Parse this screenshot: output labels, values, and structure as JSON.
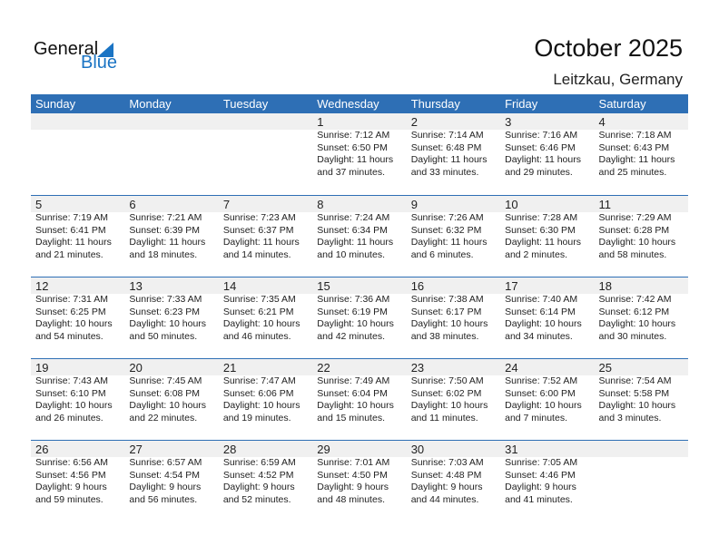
{
  "logo": {
    "general": "General",
    "blue": "Blue"
  },
  "title": "October 2025",
  "location": "Leitzkau, Germany",
  "weekdays": [
    "Sunday",
    "Monday",
    "Tuesday",
    "Wednesday",
    "Thursday",
    "Friday",
    "Saturday"
  ],
  "weeks": [
    [
      null,
      null,
      null,
      {
        "day": "1",
        "sunrise": "Sunrise: 7:12 AM",
        "sunset": "Sunset: 6:50 PM",
        "daylight": "Daylight: 11 hours",
        "minutes": "and 37 minutes."
      },
      {
        "day": "2",
        "sunrise": "Sunrise: 7:14 AM",
        "sunset": "Sunset: 6:48 PM",
        "daylight": "Daylight: 11 hours",
        "minutes": "and 33 minutes."
      },
      {
        "day": "3",
        "sunrise": "Sunrise: 7:16 AM",
        "sunset": "Sunset: 6:46 PM",
        "daylight": "Daylight: 11 hours",
        "minutes": "and 29 minutes."
      },
      {
        "day": "4",
        "sunrise": "Sunrise: 7:18 AM",
        "sunset": "Sunset: 6:43 PM",
        "daylight": "Daylight: 11 hours",
        "minutes": "and 25 minutes."
      }
    ],
    [
      {
        "day": "5",
        "sunrise": "Sunrise: 7:19 AM",
        "sunset": "Sunset: 6:41 PM",
        "daylight": "Daylight: 11 hours",
        "minutes": "and 21 minutes."
      },
      {
        "day": "6",
        "sunrise": "Sunrise: 7:21 AM",
        "sunset": "Sunset: 6:39 PM",
        "daylight": "Daylight: 11 hours",
        "minutes": "and 18 minutes."
      },
      {
        "day": "7",
        "sunrise": "Sunrise: 7:23 AM",
        "sunset": "Sunset: 6:37 PM",
        "daylight": "Daylight: 11 hours",
        "minutes": "and 14 minutes."
      },
      {
        "day": "8",
        "sunrise": "Sunrise: 7:24 AM",
        "sunset": "Sunset: 6:34 PM",
        "daylight": "Daylight: 11 hours",
        "minutes": "and 10 minutes."
      },
      {
        "day": "9",
        "sunrise": "Sunrise: 7:26 AM",
        "sunset": "Sunset: 6:32 PM",
        "daylight": "Daylight: 11 hours",
        "minutes": "and 6 minutes."
      },
      {
        "day": "10",
        "sunrise": "Sunrise: 7:28 AM",
        "sunset": "Sunset: 6:30 PM",
        "daylight": "Daylight: 11 hours",
        "minutes": "and 2 minutes."
      },
      {
        "day": "11",
        "sunrise": "Sunrise: 7:29 AM",
        "sunset": "Sunset: 6:28 PM",
        "daylight": "Daylight: 10 hours",
        "minutes": "and 58 minutes."
      }
    ],
    [
      {
        "day": "12",
        "sunrise": "Sunrise: 7:31 AM",
        "sunset": "Sunset: 6:25 PM",
        "daylight": "Daylight: 10 hours",
        "minutes": "and 54 minutes."
      },
      {
        "day": "13",
        "sunrise": "Sunrise: 7:33 AM",
        "sunset": "Sunset: 6:23 PM",
        "daylight": "Daylight: 10 hours",
        "minutes": "and 50 minutes."
      },
      {
        "day": "14",
        "sunrise": "Sunrise: 7:35 AM",
        "sunset": "Sunset: 6:21 PM",
        "daylight": "Daylight: 10 hours",
        "minutes": "and 46 minutes."
      },
      {
        "day": "15",
        "sunrise": "Sunrise: 7:36 AM",
        "sunset": "Sunset: 6:19 PM",
        "daylight": "Daylight: 10 hours",
        "minutes": "and 42 minutes."
      },
      {
        "day": "16",
        "sunrise": "Sunrise: 7:38 AM",
        "sunset": "Sunset: 6:17 PM",
        "daylight": "Daylight: 10 hours",
        "minutes": "and 38 minutes."
      },
      {
        "day": "17",
        "sunrise": "Sunrise: 7:40 AM",
        "sunset": "Sunset: 6:14 PM",
        "daylight": "Daylight: 10 hours",
        "minutes": "and 34 minutes."
      },
      {
        "day": "18",
        "sunrise": "Sunrise: 7:42 AM",
        "sunset": "Sunset: 6:12 PM",
        "daylight": "Daylight: 10 hours",
        "minutes": "and 30 minutes."
      }
    ],
    [
      {
        "day": "19",
        "sunrise": "Sunrise: 7:43 AM",
        "sunset": "Sunset: 6:10 PM",
        "daylight": "Daylight: 10 hours",
        "minutes": "and 26 minutes."
      },
      {
        "day": "20",
        "sunrise": "Sunrise: 7:45 AM",
        "sunset": "Sunset: 6:08 PM",
        "daylight": "Daylight: 10 hours",
        "minutes": "and 22 minutes."
      },
      {
        "day": "21",
        "sunrise": "Sunrise: 7:47 AM",
        "sunset": "Sunset: 6:06 PM",
        "daylight": "Daylight: 10 hours",
        "minutes": "and 19 minutes."
      },
      {
        "day": "22",
        "sunrise": "Sunrise: 7:49 AM",
        "sunset": "Sunset: 6:04 PM",
        "daylight": "Daylight: 10 hours",
        "minutes": "and 15 minutes."
      },
      {
        "day": "23",
        "sunrise": "Sunrise: 7:50 AM",
        "sunset": "Sunset: 6:02 PM",
        "daylight": "Daylight: 10 hours",
        "minutes": "and 11 minutes."
      },
      {
        "day": "24",
        "sunrise": "Sunrise: 7:52 AM",
        "sunset": "Sunset: 6:00 PM",
        "daylight": "Daylight: 10 hours",
        "minutes": "and 7 minutes."
      },
      {
        "day": "25",
        "sunrise": "Sunrise: 7:54 AM",
        "sunset": "Sunset: 5:58 PM",
        "daylight": "Daylight: 10 hours",
        "minutes": "and 3 minutes."
      }
    ],
    [
      {
        "day": "26",
        "sunrise": "Sunrise: 6:56 AM",
        "sunset": "Sunset: 4:56 PM",
        "daylight": "Daylight: 9 hours",
        "minutes": "and 59 minutes."
      },
      {
        "day": "27",
        "sunrise": "Sunrise: 6:57 AM",
        "sunset": "Sunset: 4:54 PM",
        "daylight": "Daylight: 9 hours",
        "minutes": "and 56 minutes."
      },
      {
        "day": "28",
        "sunrise": "Sunrise: 6:59 AM",
        "sunset": "Sunset: 4:52 PM",
        "daylight": "Daylight: 9 hours",
        "minutes": "and 52 minutes."
      },
      {
        "day": "29",
        "sunrise": "Sunrise: 7:01 AM",
        "sunset": "Sunset: 4:50 PM",
        "daylight": "Daylight: 9 hours",
        "minutes": "and 48 minutes."
      },
      {
        "day": "30",
        "sunrise": "Sunrise: 7:03 AM",
        "sunset": "Sunset: 4:48 PM",
        "daylight": "Daylight: 9 hours",
        "minutes": "and 44 minutes."
      },
      {
        "day": "31",
        "sunrise": "Sunrise: 7:05 AM",
        "sunset": "Sunset: 4:46 PM",
        "daylight": "Daylight: 9 hours",
        "minutes": "and 41 minutes."
      },
      null
    ]
  ],
  "colors": {
    "header": "#2e6fb5",
    "brand": "#1a74c4",
    "strip": "#f0f0f0"
  }
}
